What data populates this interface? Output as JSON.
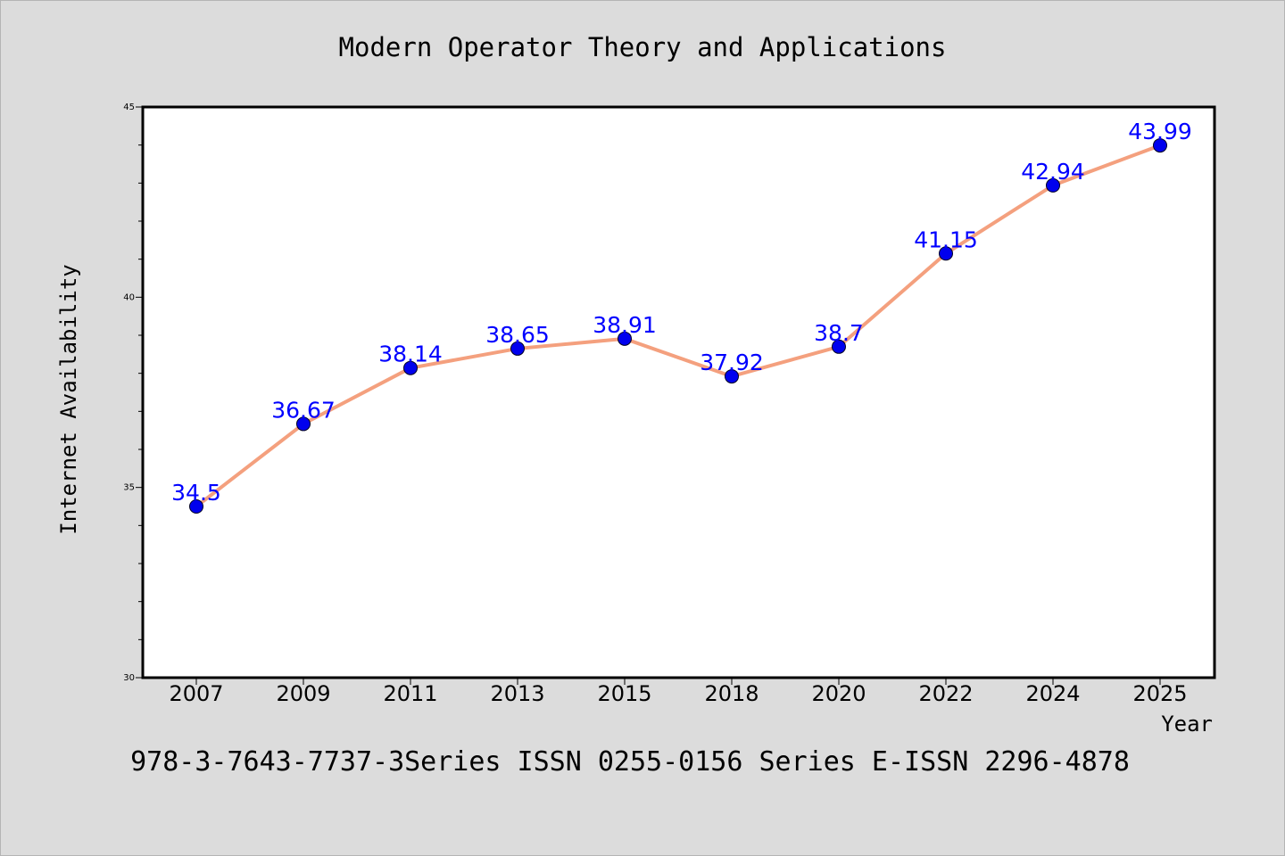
{
  "footer": "978-3-7643-7737-3Series ISSN 0255-0156 Series E-ISSN 2296-4878",
  "colors": {
    "background": "#dcdcdc",
    "plot_background": "#ffffff",
    "line": "#f4a07e",
    "marker": "#0000ee",
    "data_label": "#0000ff"
  },
  "chart_data": {
    "type": "line",
    "title": "Modern Operator Theory and Applications",
    "xlabel": "Year",
    "ylabel": "Internet Availability",
    "categories": [
      "2007",
      "2009",
      "2011",
      "2013",
      "2015",
      "2018",
      "2020",
      "2022",
      "2024",
      "2025"
    ],
    "values": [
      34.5,
      36.67,
      38.14,
      38.65,
      38.91,
      37.92,
      38.7,
      41.15,
      42.94,
      43.99
    ],
    "data_labels": [
      "34.5",
      "36.67",
      "38.14",
      "38.65",
      "38.91",
      "37.92",
      "38.7",
      "41.15",
      "42.94",
      "43.99"
    ],
    "ylim": [
      30,
      45
    ],
    "yticks": [
      "30",
      "35",
      "40",
      "45"
    ],
    "grid": false,
    "legend": "none"
  }
}
